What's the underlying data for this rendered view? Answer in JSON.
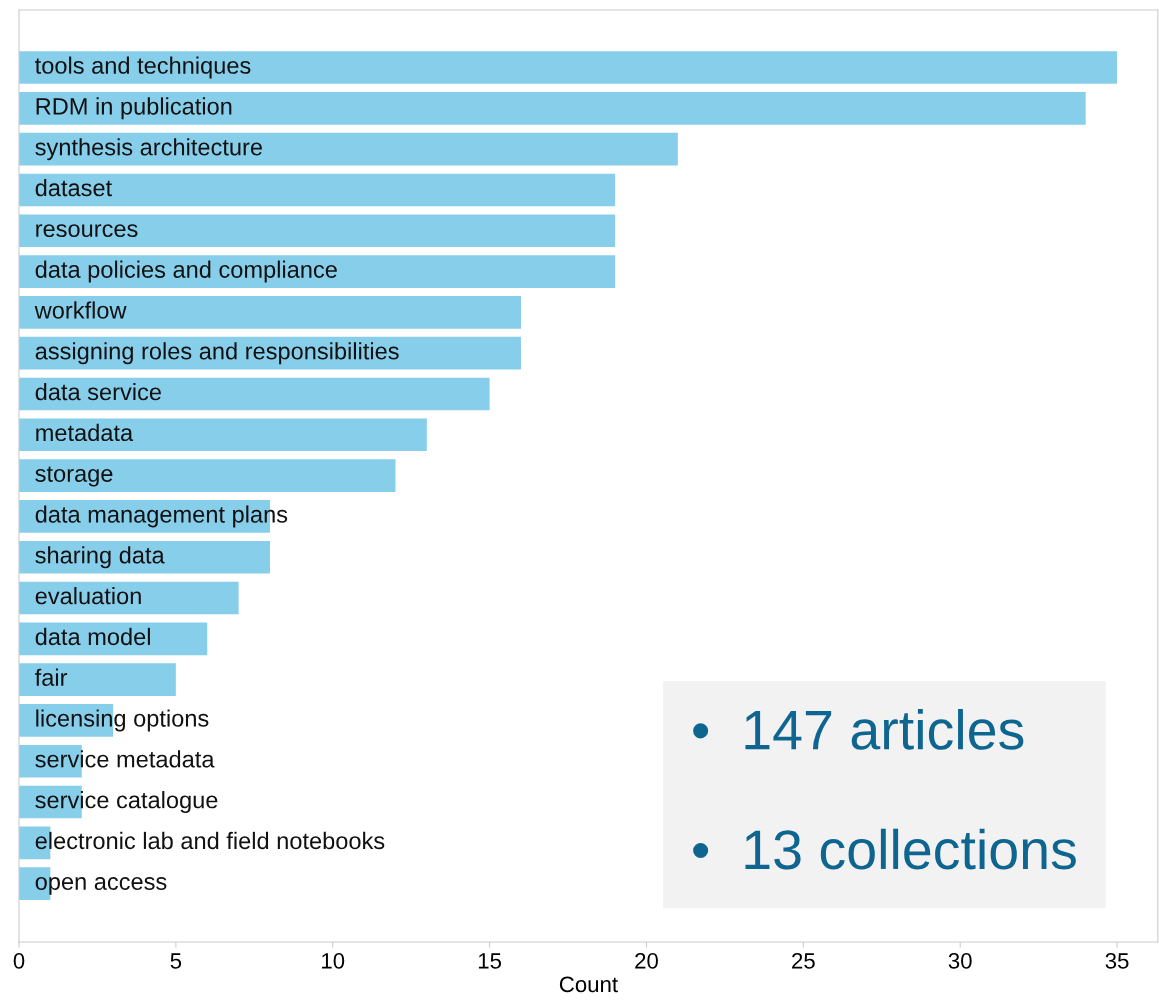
{
  "chart_data": {
    "type": "bar",
    "orientation": "horizontal",
    "xlabel": "Count",
    "categories": [
      "tools and techniques",
      "RDM in publication",
      "synthesis architecture",
      "dataset",
      "resources",
      "data policies and compliance",
      "workflow",
      "assigning roles and responsibilities",
      "data service",
      "metadata",
      "storage",
      "data management plans",
      "sharing data",
      "evaluation",
      "data model",
      "fair",
      "licensing options",
      "service metadata",
      "service catalogue",
      "electronic lab and field notebooks",
      "open access"
    ],
    "values": [
      35,
      34,
      21,
      19,
      19,
      19,
      16,
      16,
      15,
      13,
      12,
      8,
      8,
      7,
      6,
      5,
      3,
      2,
      2,
      1,
      1
    ],
    "color": "#87ceeb",
    "xlim": [
      0,
      36.3
    ],
    "xticks": [
      0,
      5,
      10,
      15,
      20,
      25,
      30,
      35
    ],
    "grid": false,
    "legend": false,
    "annotations": [
      "•  147 articles\n\n•  13 collections"
    ]
  }
}
